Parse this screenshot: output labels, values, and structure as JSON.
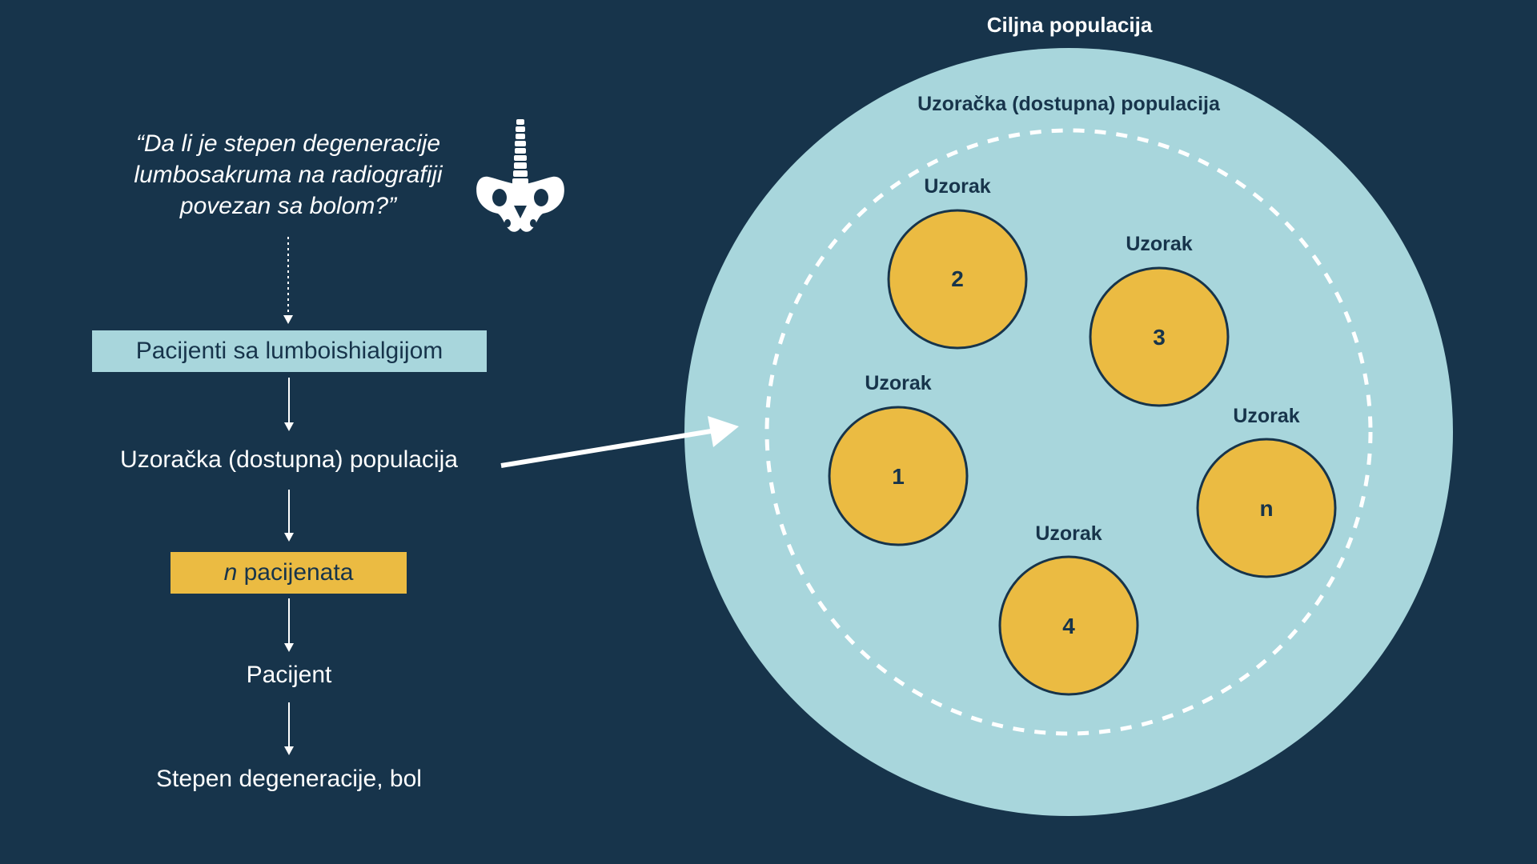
{
  "question": {
    "lines": [
      "“Da li je stepen degeneracije",
      "lumbosakruma na radiografiji",
      "povezan sa bolom?”"
    ]
  },
  "flow": {
    "patients_box": "Pacijenti sa lumboishialgijom",
    "sample_population": "Uzoračka (dostupna) populacija",
    "n_box": {
      "n": "n",
      "rest": " pacijenata"
    },
    "patient": "Pacijent",
    "outcome": "Stepen degeneracije, bol"
  },
  "population": {
    "target_label": "Ciljna populacija",
    "sample_label": "Uzoračka (dostupna) populacija",
    "samples": [
      {
        "label": "Uzorak",
        "number": "2"
      },
      {
        "label": "Uzorak",
        "number": "3"
      },
      {
        "label": "Uzorak",
        "number": "1"
      },
      {
        "label": "Uzorak",
        "number": "n"
      },
      {
        "label": "Uzorak",
        "number": "4"
      }
    ]
  },
  "icons": {
    "spine_pelvis": "spine-pelvis-icon"
  },
  "colors": {
    "background": "#17344b",
    "light_teal": "#a8d6dc",
    "gold": "#ebbb42",
    "white": "#ffffff",
    "navy_text": "#17344b"
  }
}
